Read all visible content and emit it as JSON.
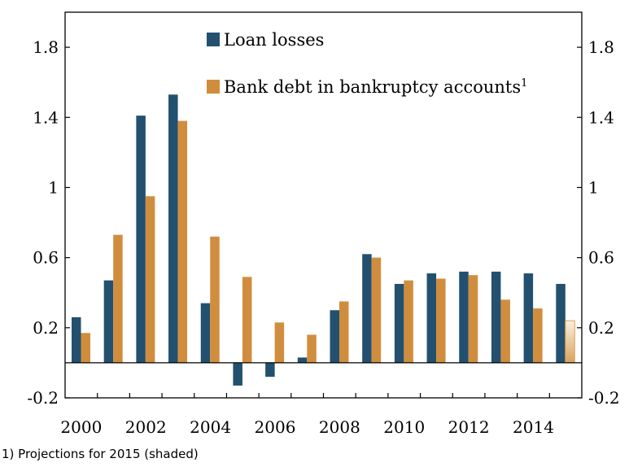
{
  "chart_data": {
    "type": "bar",
    "categories": [
      "2000",
      "2001",
      "2002",
      "2003",
      "2004",
      "2005",
      "2006",
      "2007",
      "2008",
      "2009",
      "2010",
      "2011",
      "2012",
      "2013",
      "2014",
      "2015"
    ],
    "series": [
      {
        "name": "Loan losses",
        "color": "#23506f",
        "values": [
          0.26,
          0.47,
          1.41,
          1.53,
          0.34,
          -0.13,
          -0.08,
          0.03,
          0.3,
          0.62,
          0.45,
          0.51,
          0.52,
          0.52,
          0.51,
          0.45
        ]
      },
      {
        "name": "Bank debt in bankruptcy accounts",
        "legend_superscript": "1",
        "color": "#d18d3e",
        "values": [
          0.17,
          0.73,
          0.95,
          1.38,
          0.72,
          0.49,
          0.23,
          0.16,
          0.35,
          0.6,
          0.47,
          0.48,
          0.5,
          0.36,
          0.31,
          0.24
        ],
        "projected_last": true
      }
    ],
    "x_tick_labels": [
      "2000",
      "2002",
      "2004",
      "2006",
      "2008",
      "2010",
      "2012",
      "2014"
    ],
    "y_ticks": [
      -0.2,
      0.2,
      0.6,
      1,
      1.4,
      1.8
    ],
    "y_tick_labels": [
      "-0.2",
      "0.2",
      "0.6",
      "1",
      "1.4",
      "1.8"
    ],
    "ylim": [
      -0.2,
      2.0
    ],
    "grid": false,
    "legend_position": "top-center"
  },
  "footnote": "1) Projections for 2015 (shaded)"
}
